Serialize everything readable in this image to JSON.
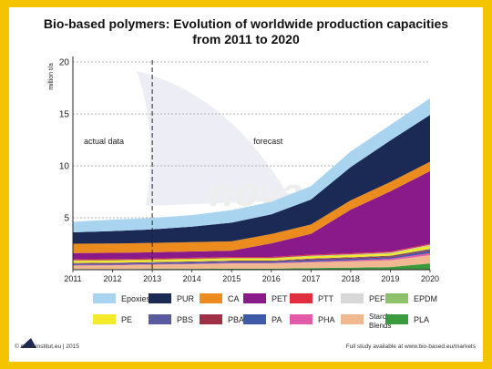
{
  "chart_data": {
    "type": "area",
    "title_line1": "Bio-based polymers: Evolution of worldwide production capacities",
    "title_line2": "from 2011 to 2020",
    "ylabel": "million t/a",
    "ylim": [
      0,
      20
    ],
    "yticks": [
      "0",
      "5",
      "10",
      "15",
      "20"
    ],
    "grid": true,
    "x": [
      "2011",
      "2012",
      "2013",
      "2014",
      "2015",
      "2016",
      "2017",
      "2018",
      "2019",
      "2020"
    ],
    "annotations": {
      "left": "actual data",
      "right": "forecast"
    },
    "series": [
      {
        "name": "PLA",
        "color": "#3a9a3e",
        "values": [
          0.05,
          0.05,
          0.08,
          0.08,
          0.1,
          0.1,
          0.15,
          0.2,
          0.25,
          0.6
        ]
      },
      {
        "name": "Starch\nBlends",
        "color": "#f0b890",
        "values": [
          0.35,
          0.37,
          0.4,
          0.45,
          0.5,
          0.5,
          0.55,
          0.6,
          0.65,
          0.8
        ]
      },
      {
        "name": "PHA",
        "color": "#e25aa8",
        "values": [
          0.05,
          0.05,
          0.05,
          0.05,
          0.06,
          0.06,
          0.08,
          0.1,
          0.15,
          0.2
        ]
      },
      {
        "name": "PA",
        "color": "#3e5aa8",
        "values": [
          0.1,
          0.1,
          0.1,
          0.12,
          0.12,
          0.12,
          0.15,
          0.15,
          0.15,
          0.2
        ]
      },
      {
        "name": "PBAT",
        "color": "#a03048",
        "values": [
          0.05,
          0.05,
          0.05,
          0.05,
          0.05,
          0.05,
          0.1,
          0.1,
          0.1,
          0.1
        ]
      },
      {
        "name": "PBS",
        "color": "#5a5aa0",
        "values": [
          0.05,
          0.05,
          0.05,
          0.05,
          0.05,
          0.05,
          0.05,
          0.05,
          0.05,
          0.1
        ]
      },
      {
        "name": "PE",
        "color": "#f5ea2a",
        "values": [
          0.2,
          0.2,
          0.2,
          0.2,
          0.2,
          0.2,
          0.2,
          0.2,
          0.2,
          0.3
        ]
      },
      {
        "name": "EPDM",
        "color": "#8cc06a",
        "values": [
          0.05,
          0.05,
          0.05,
          0.05,
          0.05,
          0.05,
          0.05,
          0.05,
          0.05,
          0.05
        ]
      },
      {
        "name": "PEF",
        "color": "#d8d8d8",
        "values": [
          0.0,
          0.0,
          0.0,
          0.0,
          0.0,
          0.0,
          0.02,
          0.03,
          0.04,
          0.05
        ]
      },
      {
        "name": "PTT",
        "color": "#e03040",
        "values": [
          0.1,
          0.1,
          0.1,
          0.1,
          0.1,
          0.1,
          0.1,
          0.1,
          0.1,
          0.1
        ]
      },
      {
        "name": "PET",
        "color": "#8a1a8a",
        "values": [
          0.6,
          0.6,
          0.6,
          0.6,
          0.6,
          1.3,
          2.0,
          4.2,
          5.8,
          7.0
        ]
      },
      {
        "name": "CA",
        "color": "#ec8c1e",
        "values": [
          0.9,
          0.9,
          0.9,
          0.9,
          0.9,
          0.9,
          0.9,
          0.9,
          0.9,
          0.9
        ]
      },
      {
        "name": "PUR",
        "color": "#1a2a55",
        "values": [
          1.1,
          1.2,
          1.3,
          1.5,
          1.8,
          1.9,
          2.4,
          3.2,
          4.0,
          4.5
        ]
      },
      {
        "name": "Epoxies",
        "color": "#a8d4f0",
        "values": [
          1.0,
          1.1,
          1.1,
          1.1,
          1.2,
          1.2,
          1.3,
          1.5,
          1.5,
          1.6
        ]
      }
    ],
    "legend_rows": [
      [
        "Epoxies",
        "PUR",
        "CA",
        "PET",
        "PTT",
        "PEF",
        "EPDM"
      ],
      [
        "PE",
        "PBS",
        "PBAT",
        "PA",
        "PHA",
        "Starch\nBlends",
        "PLA"
      ]
    ],
    "legend_placement": "bottom"
  },
  "footer": {
    "left": "nova-Institut.eu | 2015",
    "copyright": "©",
    "right": "Full study available at www.bio-based.eu/markets"
  },
  "watermark": "nova"
}
